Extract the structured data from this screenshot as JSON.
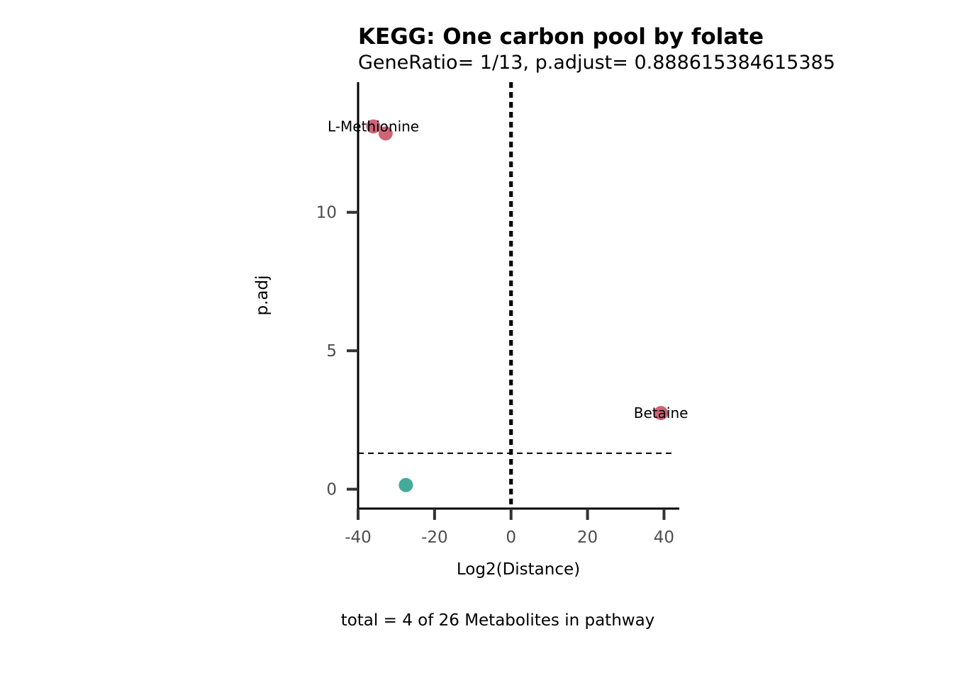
{
  "chart_data": {
    "type": "scatter",
    "title": "KEGG: One carbon pool by folate",
    "subtitle": "GeneRatio= 1/13, p.adjust= 0.888615384615385",
    "xlabel": "Log2(Distance)",
    "ylabel": "p.adj",
    "caption": "total = 4 of 26 Metabolites in pathway",
    "xlim": [
      -40,
      44
    ],
    "ylim": [
      -0.7,
      14.7
    ],
    "x_ticks": [
      -40,
      -20,
      0,
      20,
      40
    ],
    "y_ticks": [
      0,
      5,
      10
    ],
    "vlines": [
      -0.2,
      0.2
    ],
    "hline": 1.3,
    "grid": false,
    "legend": "none",
    "colors": {
      "up": "#cc6677",
      "down": "#44aa99",
      "line": "#000000",
      "axis": "#333333"
    },
    "points": [
      {
        "x": -36,
        "y": 13.1,
        "color": "up",
        "label": "L-Methionine"
      },
      {
        "x": -32.8,
        "y": 12.85,
        "color": "up",
        "label": ""
      },
      {
        "x": 39.2,
        "y": 2.75,
        "color": "up",
        "label": "Betaine"
      },
      {
        "x": -27.5,
        "y": 0.15,
        "color": "down",
        "label": ""
      }
    ]
  }
}
